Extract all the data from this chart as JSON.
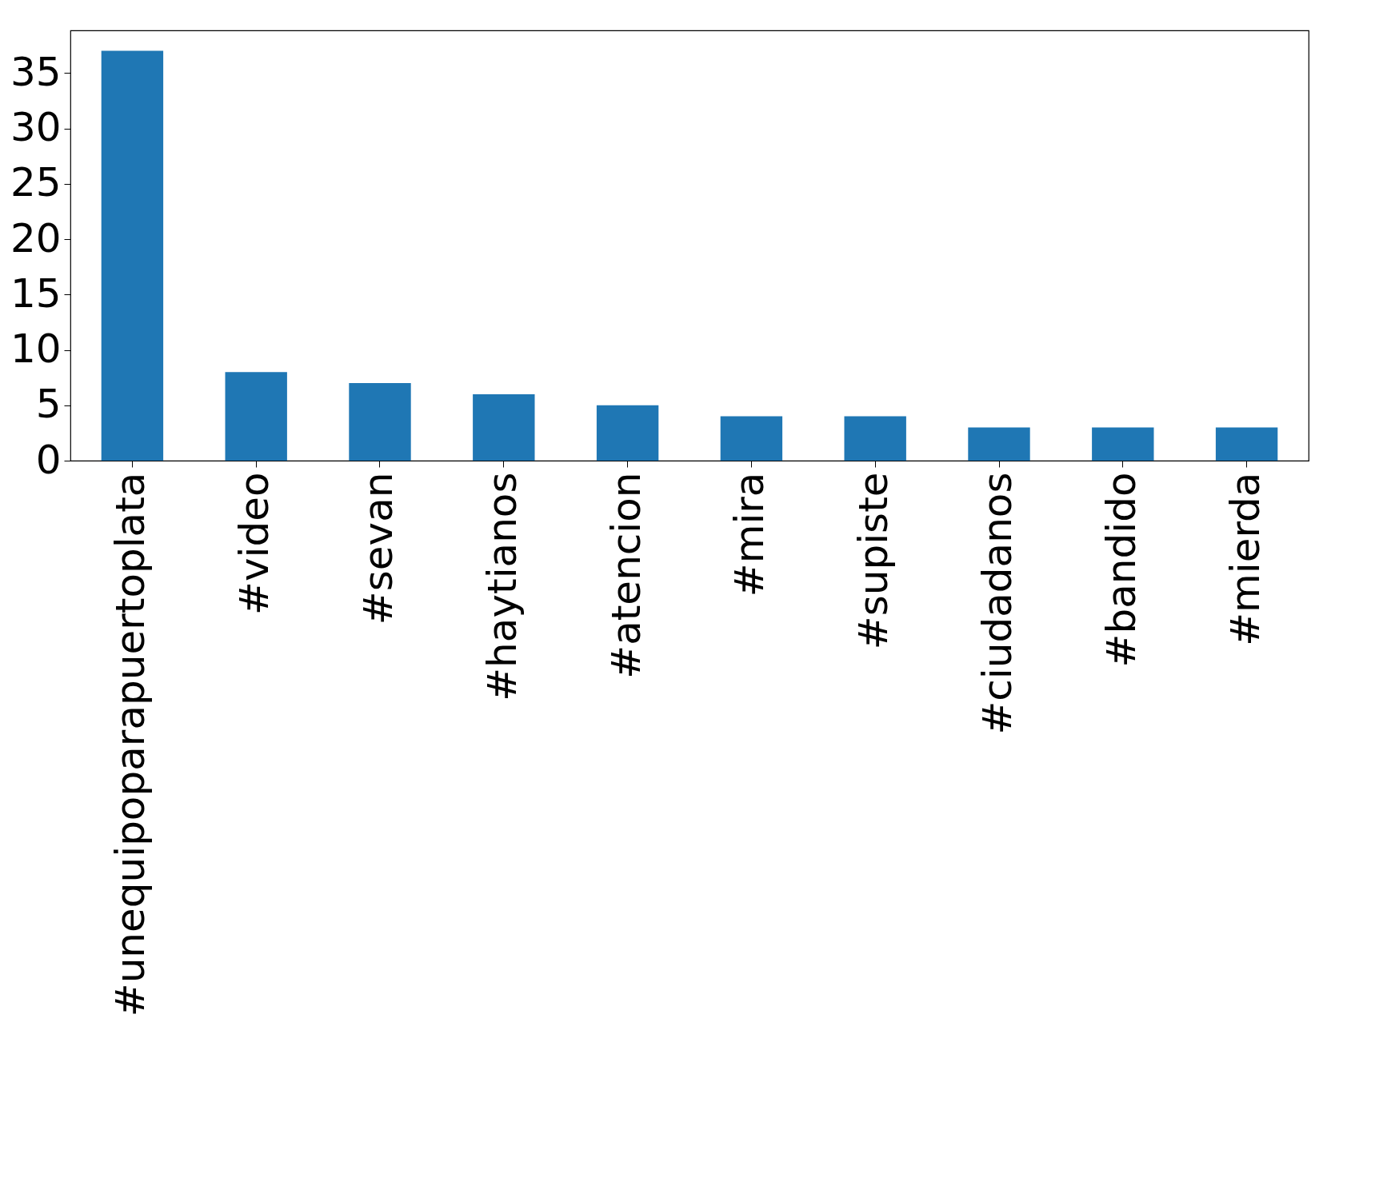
{
  "chart_data": {
    "type": "bar",
    "categories": [
      "#unequipoparapuertoplata",
      "#video",
      "#sevan",
      "#haytianos",
      "#atencion",
      "#mira",
      "#supiste",
      "#ciudadanos",
      "#bandido",
      "#mierda"
    ],
    "values": [
      37,
      8,
      7,
      6,
      5,
      4,
      4,
      3,
      3,
      3
    ],
    "color": "#1f77b4",
    "ylim": [
      0,
      38.85
    ],
    "yticks": [
      0,
      5,
      10,
      15,
      20,
      25,
      30,
      35
    ],
    "grid": false
  }
}
